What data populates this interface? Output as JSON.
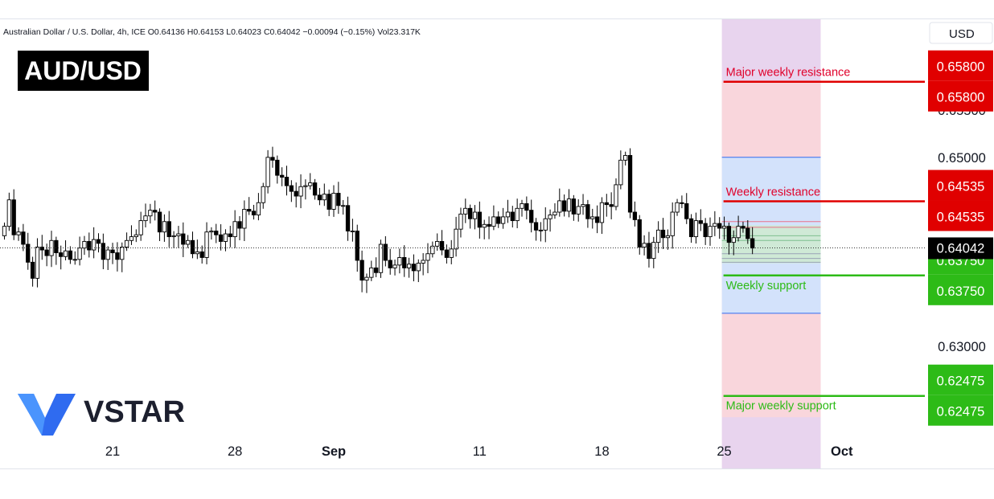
{
  "legend_line": "Australian Dollar / U.S. Dollar, 4h, ICE  O0.64136  H0.64153  L0.64023  C0.64042  −0.00094 (−0.15%)  Vol23.317K",
  "symbol_badge": "AUD/USD",
  "currency": "USD",
  "brand": "VSTAR",
  "colors": {
    "up": "#ffffff",
    "down": "#000000",
    "resistance": "#e00000",
    "support": "#2dbb17",
    "zone_purple": "#e8d4ee",
    "zone_red": "#f9d6dc",
    "zone_blue": "#d3e2fb",
    "zone_green": "#cfe9d6",
    "logo_blue": "#2f6bf0",
    "logo_blue_light": "#4f9bff"
  },
  "levels": [
    {
      "name": "Major weekly resistance",
      "value": 0.658,
      "price_label_1": "0.65800",
      "price_label_2": "0.65800",
      "kind": "resistance"
    },
    {
      "name": "Weekly resistance",
      "value": 0.64535,
      "price_label_1": "0.64535",
      "price_label_2": "0.64535",
      "kind": "resistance"
    },
    {
      "name": "Weekly support",
      "value": 0.6375,
      "price_label_1": "0.63750",
      "price_label_2": "0.63750",
      "kind": "support"
    },
    {
      "name": "Major weekly support",
      "value": 0.62475,
      "price_label_1": "0.62475",
      "price_label_2": "0.62475",
      "kind": "support"
    }
  ],
  "current_price": {
    "value": 0.64042,
    "label": "0.64042"
  },
  "chart_data": {
    "type": "candlestick",
    "title": "AUD/USD",
    "timeframe": "4h",
    "y_axis": {
      "ticks": [
        0.655,
        0.65,
        0.63
      ],
      "tick_labels": [
        "0.65500",
        "0.65000",
        "0.63000"
      ],
      "range": [
        0.6195,
        0.6635
      ],
      "side": "right"
    },
    "x_axis": {
      "ticks": [
        {
          "label": "21",
          "index": 23
        },
        {
          "label": "28",
          "index": 49
        },
        {
          "label": "Sep",
          "index": 70
        },
        {
          "label": "11",
          "index": 101
        },
        {
          "label": "18",
          "index": 127
        },
        {
          "label": "25",
          "index": 153
        },
        {
          "label": "Oct",
          "index": 178
        }
      ]
    },
    "candle_count": 160,
    "forecast_zone": {
      "start_index": 152.5,
      "end_index": 173.5
    },
    "candle_seeds": [
      0.6427,
      0.6455,
      0.6418,
      0.6421,
      0.6408,
      0.6389,
      0.6372,
      0.6405,
      0.6402,
      0.6396,
      0.6412,
      0.6399,
      0.6395,
      0.6401,
      0.6392,
      0.6392,
      0.6404,
      0.6411,
      0.6402,
      0.6413,
      0.6409,
      0.6392,
      0.6402,
      0.6399,
      0.6392,
      0.6405,
      0.6412,
      0.6416,
      0.6418,
      0.6433,
      0.6438,
      0.6444,
      0.6442,
      0.6421,
      0.6432,
      0.6416,
      0.6417,
      0.6419,
      0.6408,
      0.6412,
      0.6398,
      0.64,
      0.6394,
      0.6421,
      0.6422,
      0.6418,
      0.6411,
      0.6419,
      0.6416,
      0.6432,
      0.6425,
      0.6445,
      0.6443,
      0.6439,
      0.6452,
      0.6469,
      0.65,
      0.6497,
      0.6481,
      0.6479,
      0.647,
      0.6464,
      0.6459,
      0.6469,
      0.647,
      0.6473,
      0.646,
      0.6455,
      0.6461,
      0.6445,
      0.6462,
      0.6449,
      0.6449,
      0.6422,
      0.6422,
      0.6391,
      0.637,
      0.6373,
      0.6383,
      0.6378,
      0.6408,
      0.6391,
      0.6383,
      0.6386,
      0.6394,
      0.6383,
      0.6387,
      0.638,
      0.6388,
      0.6391,
      0.6398,
      0.6406,
      0.6411,
      0.6402,
      0.6394,
      0.6403,
      0.6424,
      0.644,
      0.6446,
      0.6435,
      0.6442,
      0.6426,
      0.6429,
      0.6427,
      0.6437,
      0.643,
      0.6437,
      0.6442,
      0.6433,
      0.6446,
      0.6451,
      0.6444,
      0.6431,
      0.6423,
      0.6423,
      0.6435,
      0.6439,
      0.6442,
      0.6454,
      0.6443,
      0.6456,
      0.644,
      0.6448,
      0.645,
      0.6435,
      0.6437,
      0.6431,
      0.6452,
      0.645,
      0.6448,
      0.6471,
      0.6497,
      0.6502,
      0.6442,
      0.6434,
      0.6405,
      0.6409,
      0.6393,
      0.641,
      0.6423,
      0.6415,
      0.6417,
      0.6442,
      0.6452,
      0.6451,
      0.6435,
      0.6416,
      0.6433,
      0.643,
      0.6416,
      0.6427,
      0.643,
      0.6425,
      0.6427,
      0.641,
      0.6415,
      0.6427,
      0.6425,
      0.6414,
      0.6404
    ]
  }
}
